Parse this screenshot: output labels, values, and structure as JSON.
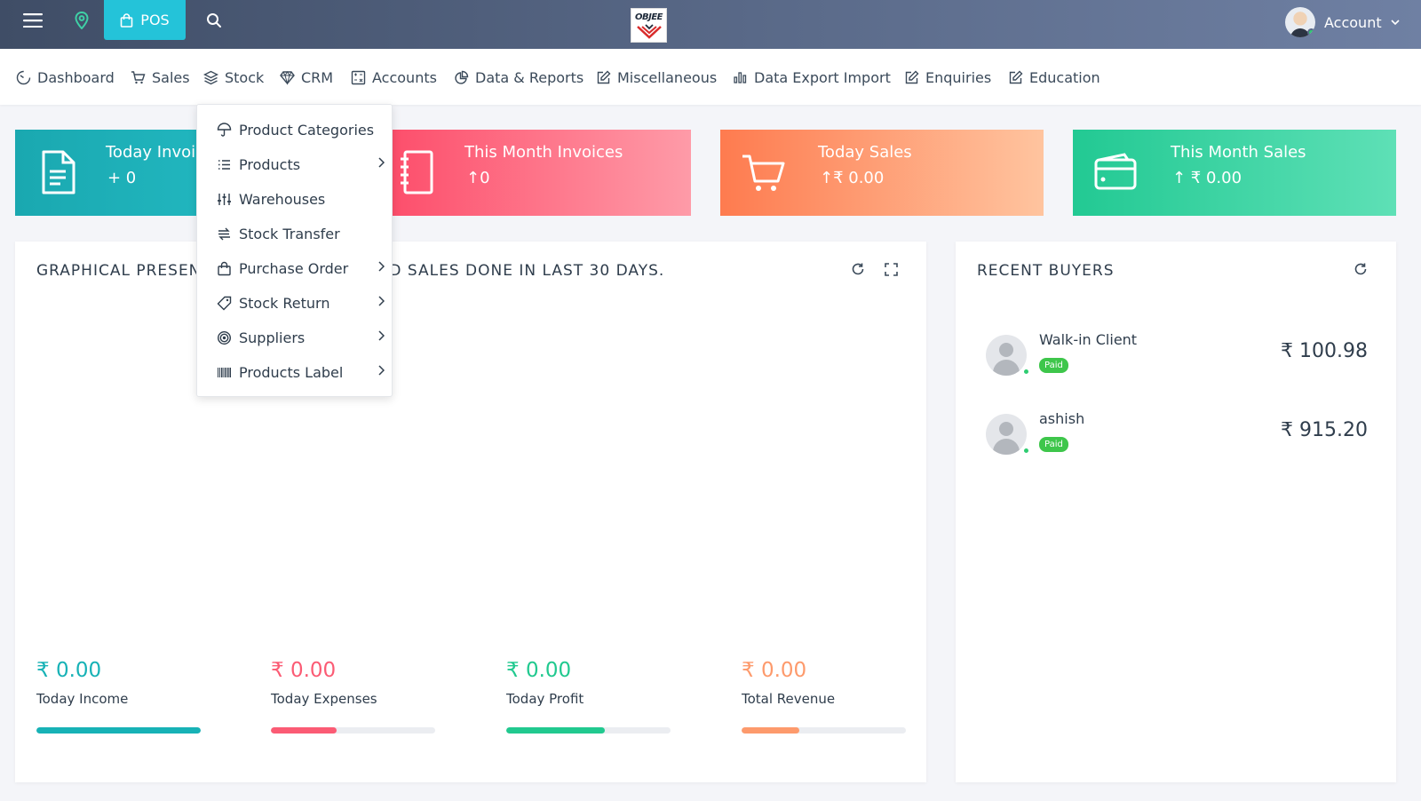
{
  "topbar": {
    "pos_label": "POS",
    "logo_text": "OBJEE",
    "account_label": "Account"
  },
  "nav": {
    "items": [
      {
        "label": "Dashboard",
        "icon": "gauge-icon"
      },
      {
        "label": "Sales",
        "icon": "cart-icon"
      },
      {
        "label": "Stock",
        "icon": "layers-icon"
      },
      {
        "label": "CRM",
        "icon": "diamond-icon"
      },
      {
        "label": "Accounts",
        "icon": "calculator-icon"
      },
      {
        "label": "Data & Reports",
        "icon": "pie-icon"
      },
      {
        "label": "Miscellaneous",
        "icon": "edit-icon"
      },
      {
        "label": "Data Export Import",
        "icon": "bar-chart-icon"
      },
      {
        "label": "Enquiries",
        "icon": "edit-icon"
      },
      {
        "label": "Education",
        "icon": "edit-icon"
      }
    ]
  },
  "stock_menu": {
    "items": [
      {
        "label": "Product Categories",
        "icon": "umbrella-icon",
        "has_submenu": false
      },
      {
        "label": "Products",
        "icon": "list-icon",
        "has_submenu": true
      },
      {
        "label": "Warehouses",
        "icon": "sliders-icon",
        "has_submenu": false
      },
      {
        "label": "Stock Transfer",
        "icon": "transfer-icon",
        "has_submenu": false
      },
      {
        "label": "Purchase Order",
        "icon": "bag-icon",
        "has_submenu": true
      },
      {
        "label": "Stock Return",
        "icon": "tag-icon",
        "has_submenu": true
      },
      {
        "label": "Suppliers",
        "icon": "target-icon",
        "has_submenu": true
      },
      {
        "label": "Products Label",
        "icon": "barcode-icon",
        "has_submenu": true
      }
    ]
  },
  "cards": {
    "today_invoices": {
      "title": "Today Invoices",
      "value": "+ 0",
      "color": "#1aa8b0"
    },
    "month_invoices": {
      "title": "This Month Invoices",
      "value": "↑0",
      "color": "#fd4a68"
    },
    "today_sales": {
      "title": "Today Sales",
      "value": "↑₹ 0.00",
      "color": "#fe7b4f"
    },
    "month_sales": {
      "title": "This Month Sales",
      "value": "↑ ₹ 0.00",
      "color": "#22c993"
    }
  },
  "graph_panel": {
    "title": "Graphical Presentation of Income and Sales Done in Last 30 Days.",
    "stats": [
      {
        "value": "₹ 0.00",
        "label": "Today Income",
        "color": "#17b2b6",
        "progress": 1.0
      },
      {
        "value": "₹ 0.00",
        "label": "Today Expenses",
        "color": "#fb5b74",
        "progress": 0.4
      },
      {
        "value": "₹ 0.00",
        "label": "Today Profit",
        "color": "#21c98f",
        "progress": 0.6
      },
      {
        "value": "₹ 0.00",
        "label": "Total Revenue",
        "color": "#fd9a6c",
        "progress": 0.35
      }
    ]
  },
  "buyers_panel": {
    "title": "Recent Buyers",
    "buyers": [
      {
        "name": "Walk-in Client",
        "status": "Paid",
        "amount": "₹ 100.98"
      },
      {
        "name": "ashish",
        "status": "Paid",
        "amount": "₹ 915.20"
      }
    ]
  }
}
